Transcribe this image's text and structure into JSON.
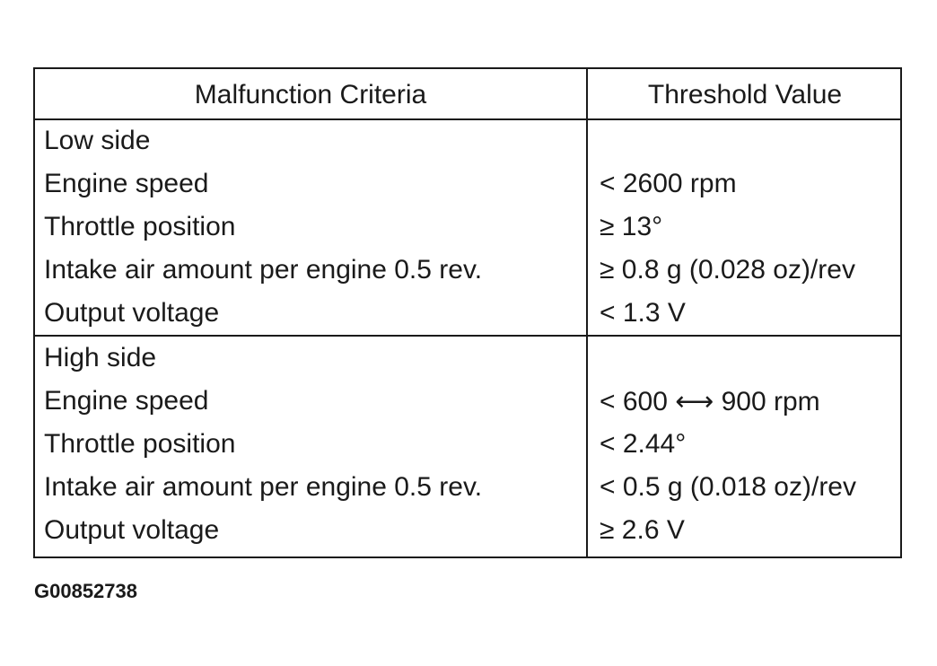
{
  "table": {
    "headers": {
      "criteria": "Malfunction Criteria",
      "threshold": "Threshold Value"
    },
    "low": {
      "title": "Low side",
      "rows": [
        {
          "criteria": "Engine speed",
          "value": "< 2600 rpm"
        },
        {
          "criteria": "Throttle position",
          "value": "≥ 13°"
        },
        {
          "criteria": "Intake air amount per engine 0.5 rev.",
          "value": "≥ 0.8 g (0.028 oz)/rev"
        },
        {
          "criteria": "Output voltage",
          "value": "< 1.3 V"
        }
      ]
    },
    "high": {
      "title": "High side",
      "rows": [
        {
          "criteria": "Engine speed",
          "value": "< 600 ⟷ 900 rpm"
        },
        {
          "criteria": "Throttle position",
          "value": "< 2.44°"
        },
        {
          "criteria": "Intake air amount per engine 0.5 rev.",
          "value": "< 0.5 g (0.018 oz)/rev"
        },
        {
          "criteria": "Output voltage",
          "value": "≥ 2.6 V"
        }
      ]
    }
  },
  "caption": "G00852738"
}
